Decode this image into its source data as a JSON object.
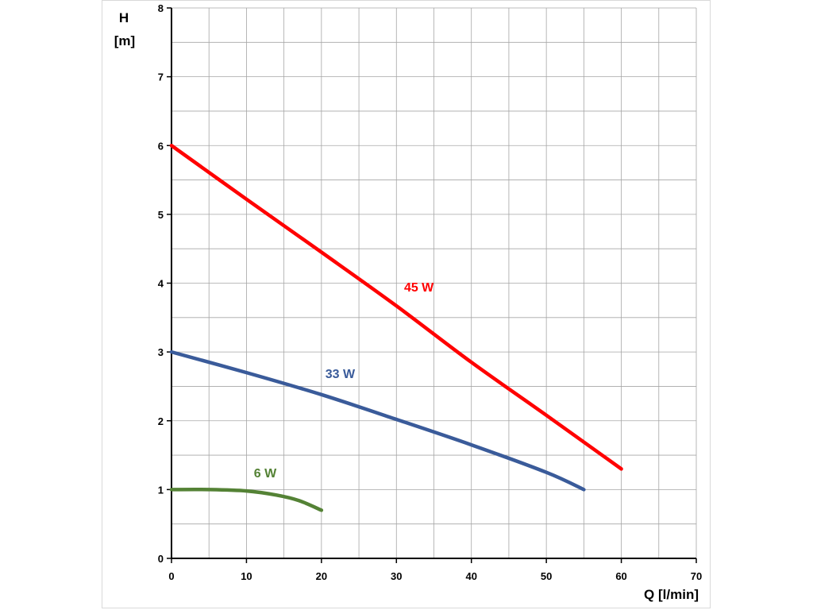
{
  "chart_data": {
    "type": "line",
    "ylabel_lines": [
      "H",
      "[m]"
    ],
    "xlabel": "Q [l/min]",
    "xlim": [
      0,
      70
    ],
    "ylim": [
      0,
      8
    ],
    "x_major_ticks": [
      0,
      10,
      20,
      30,
      40,
      50,
      60,
      70
    ],
    "y_major_ticks": [
      0,
      1,
      2,
      3,
      4,
      5,
      6,
      7,
      8
    ],
    "x_minor_step": 5,
    "y_minor_step": 0.5,
    "grid": true,
    "series": [
      {
        "name": "45 W",
        "color": "#ff0000",
        "x": [
          0,
          10,
          20,
          30,
          40,
          50,
          60
        ],
        "y": [
          6.0,
          5.22,
          4.45,
          3.67,
          2.85,
          2.08,
          1.3
        ]
      },
      {
        "name": "33 W",
        "color": "#3a5b9a",
        "x": [
          0,
          10,
          20,
          30,
          40,
          50,
          55
        ],
        "y": [
          3.0,
          2.7,
          2.38,
          2.02,
          1.65,
          1.25,
          1.0
        ]
      },
      {
        "name": "6 W",
        "color": "#548235",
        "x": [
          0,
          5,
          10,
          14,
          17,
          20
        ],
        "y": [
          1.0,
          1.0,
          0.98,
          0.92,
          0.84,
          0.7
        ]
      }
    ],
    "series_label_anchor": [
      {
        "x": 33.0,
        "y": 3.88
      },
      {
        "x": 22.5,
        "y": 2.62
      },
      {
        "x": 12.5,
        "y": 1.18
      }
    ]
  }
}
